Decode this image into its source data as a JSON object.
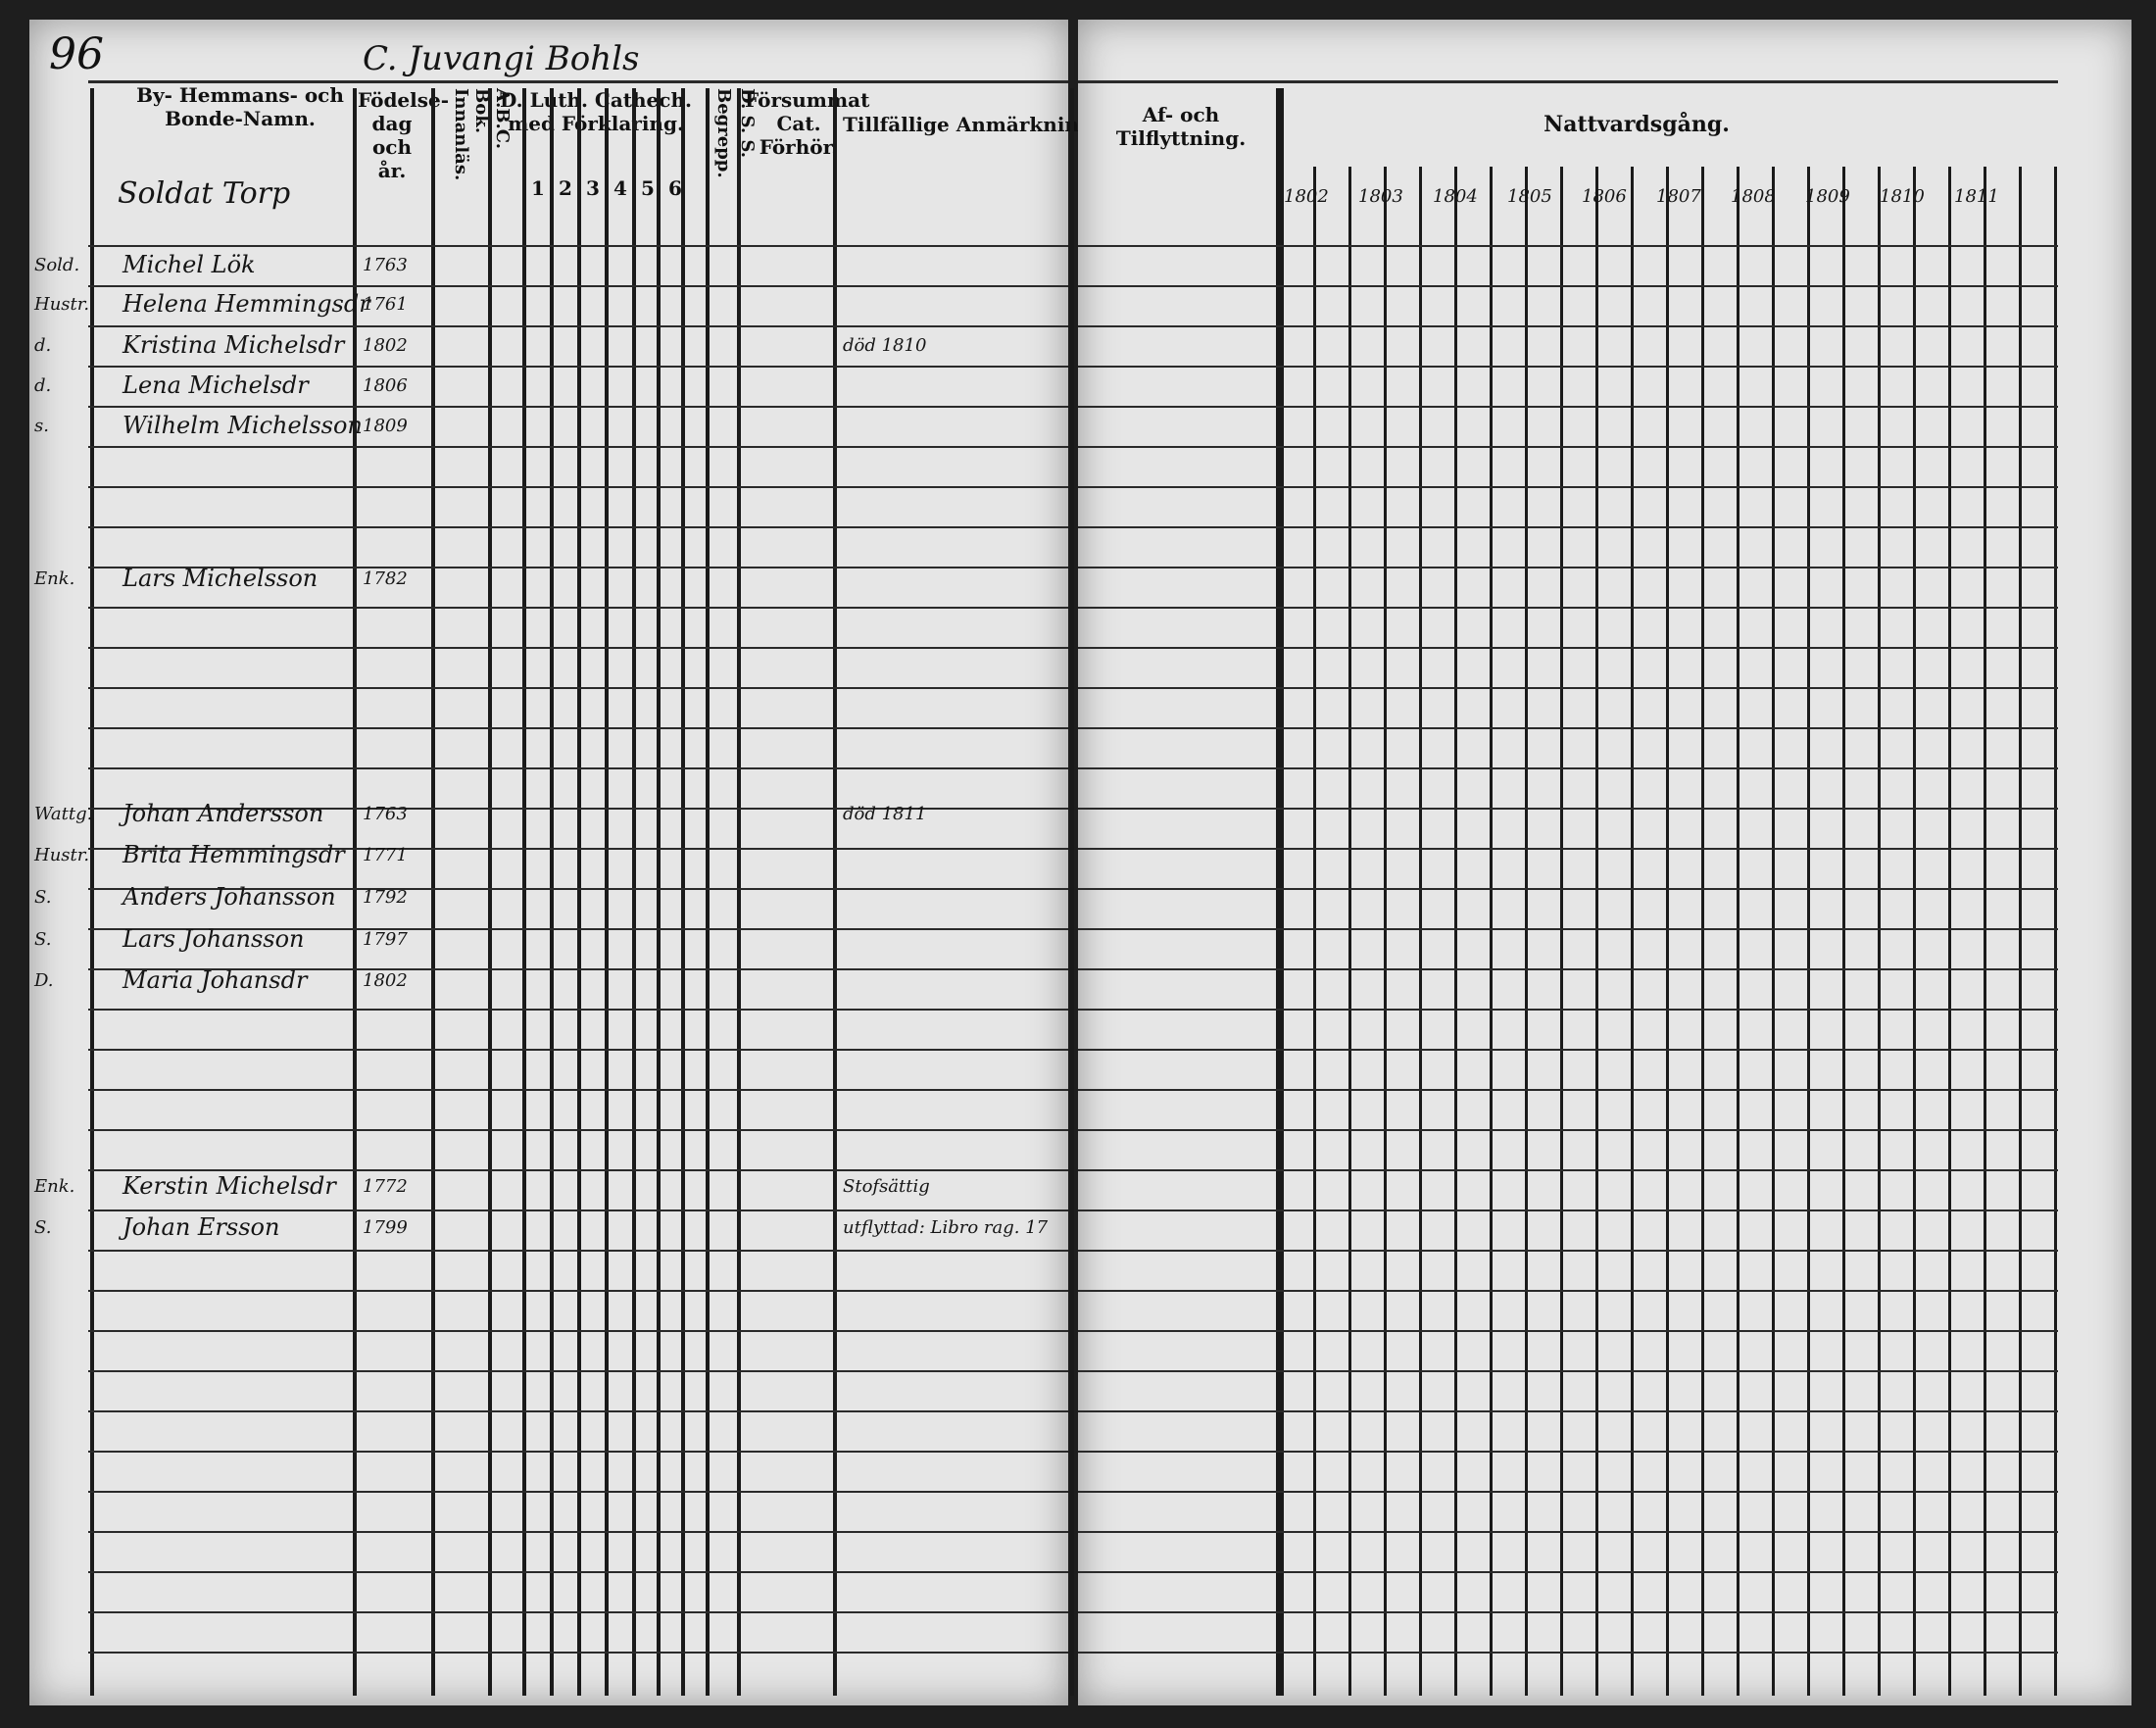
{
  "page_number": "96",
  "title": "C. Juvangi Bohls",
  "left_headers": {
    "name": "By- Hemmans- och Bonde-Namn.",
    "birth": "Födelse-dag och år.",
    "abc": "A.B.C. Bok. Innanläs.",
    "catechism": "D. Luth. Cathech. med Förklaring.",
    "catechism_cols": [
      "1",
      "2",
      "3",
      "4",
      "5",
      "6"
    ],
    "begrepp": "Begrepp.",
    "ds": "D. S. S.",
    "forsummat": "Försummat Cat. Förhör.",
    "remarks": "Tillfällige Anmärkning"
  },
  "right_headers": {
    "moving": "Af- och Tilflyttning.",
    "communion": "Nattvardsgång.",
    "years": [
      "1802",
      "1803",
      "1804",
      "1805",
      "1806",
      "1807",
      "1808",
      "1809",
      "1810",
      "1811"
    ]
  },
  "section_heading": "Soldat Torp",
  "entries": [
    {
      "role": "Sold.",
      "name": "Michel Lök",
      "birth": "1763"
    },
    {
      "role": "Hustr.",
      "name": "Helena Hemmingsdr",
      "birth": "1761"
    },
    {
      "role": "d.",
      "name": "Kristina Michelsdr",
      "birth": "1802",
      "remark": "död 1810"
    },
    {
      "role": "d.",
      "name": "Lena Michelsdr",
      "birth": "1806"
    },
    {
      "role": "s.",
      "name": "Wilhelm Michelsson",
      "birth": "1809"
    },
    {
      "role": "Enk.",
      "name": "Lars Michelsson",
      "birth": "1782"
    },
    {
      "role": "Wattg.",
      "name": "Johan Andersson",
      "birth": "1763",
      "remark": "död 1811"
    },
    {
      "role": "Hustr.",
      "name": "Brita Hemmingsdr",
      "birth": "1771"
    },
    {
      "role": "S.",
      "name": "Anders Johansson",
      "birth": "1792"
    },
    {
      "role": "S.",
      "name": "Lars Johansson",
      "birth": "1797"
    },
    {
      "role": "D.",
      "name": "Maria Johansdr",
      "birth": "1802"
    },
    {
      "role": "Enk.",
      "name": "Kerstin Michelsdr",
      "birth": "1772",
      "remark": "Stofsättig"
    },
    {
      "role": "S.",
      "name": "Johan Ersson",
      "birth": "1799",
      "remark": "utflyttad: Libro rag. 17"
    }
  ]
}
